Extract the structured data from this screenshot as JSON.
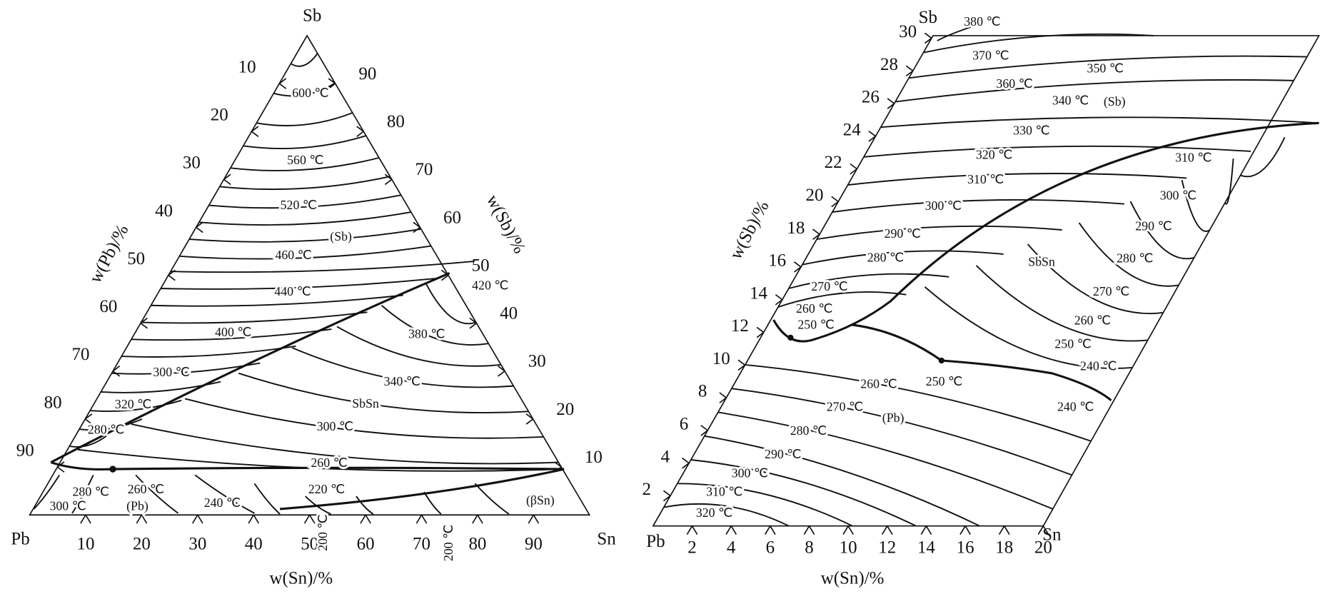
{
  "left_diagram": {
    "vertices": [
      "Sb",
      "Pb",
      "Sn"
    ],
    "pb_axis_title": "w(Pb)/%",
    "sb_axis_title": "w(Sb)/%",
    "sn_axis_title": "w(Sn)/%",
    "pb_ticks": [
      "10",
      "20",
      "30",
      "40",
      "50",
      "60",
      "70",
      "80",
      "90"
    ],
    "sb_ticks": [
      "90",
      "80",
      "70",
      "60",
      "50",
      "40",
      "30",
      "20",
      "10"
    ],
    "sn_ticks": [
      "10",
      "20",
      "30",
      "40",
      "50",
      "60",
      "70",
      "80",
      "90"
    ],
    "isotherm_labels": [
      "600 ℃",
      "560 ℃",
      "520 ℃",
      "460 ℃",
      "440 ℃",
      "400 ℃",
      "300 ℃",
      "320 ℃",
      "280 ℃",
      "420 ℃",
      "380 ℃",
      "340 ℃",
      "300 ℃",
      "260 ℃",
      "220 ℃",
      "240 ℃",
      "260 ℃",
      "280 ℃",
      "300 ℃",
      "200 ℃",
      "200 ℃"
    ],
    "phase_labels": [
      "(Sb)",
      "SbSn",
      "(Pb)",
      "(βSn)"
    ]
  },
  "right_diagram": {
    "vertices": [
      "Sb",
      "Pb",
      "Sn"
    ],
    "sb_axis_title": "w(Sb)/%",
    "sn_axis_title": "w(Sn)/%",
    "sb_ticks": [
      "30",
      "28",
      "26",
      "24",
      "22",
      "20",
      "18",
      "16",
      "14",
      "12",
      "10",
      "8",
      "6",
      "4",
      "2"
    ],
    "sn_ticks": [
      "2",
      "4",
      "6",
      "8",
      "10",
      "12",
      "14",
      "16",
      "18",
      "20"
    ],
    "isotherm_labels": [
      "380 ℃",
      "370 ℃",
      "350 ℃",
      "360 ℃",
      "340 ℃",
      "330 ℃",
      "320 ℃",
      "310 ℃",
      "300 ℃",
      "290 ℃",
      "280 ℃",
      "270 ℃",
      "260 ℃",
      "250 ℃",
      "310 ℃",
      "300 ℃",
      "290 ℃",
      "280 ℃",
      "270 ℃",
      "260 ℃",
      "250 ℃",
      "240 ℃",
      "250 ℃",
      "260 ℃",
      "240 ℃",
      "270 ℃",
      "280 ℃",
      "290 ℃",
      "300 ℃",
      "310 ℃",
      "320 ℃"
    ],
    "phase_labels": [
      "(Sb)",
      "SbSn",
      "(Pb)"
    ]
  }
}
